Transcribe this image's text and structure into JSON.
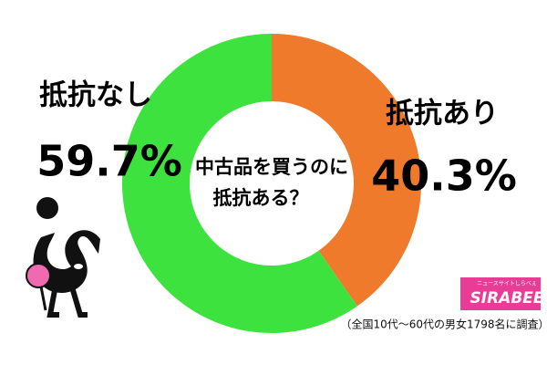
{
  "chart_data": {
    "type": "donut",
    "title": [
      "中古品を買うのに",
      "抵抗ある？"
    ],
    "categories": [
      "抵抗あり",
      "抵抗なし"
    ],
    "values": [
      40.3,
      59.7
    ],
    "value_labels": [
      "40.3%",
      "59.7%"
    ],
    "colors": [
      "#f07a2c",
      "#3ee23e"
    ],
    "note": "（全国10代～60代の男女1798名に調査）",
    "logo": {
      "tagline": "ニュースサイトしらべぇ",
      "name": "SIRABEE"
    }
  }
}
